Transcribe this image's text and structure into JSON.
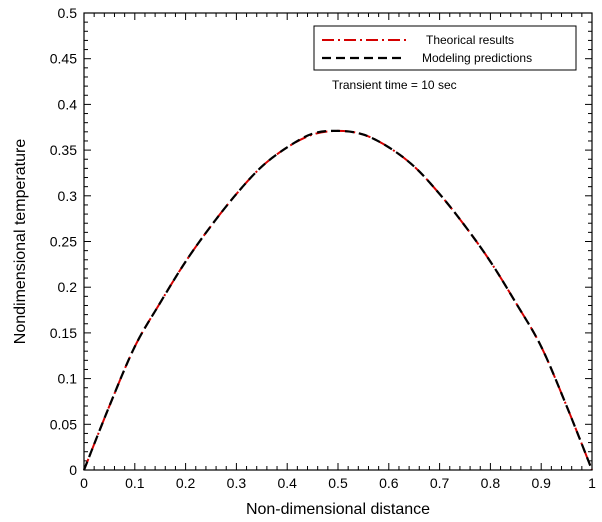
{
  "chart_data": {
    "type": "line",
    "title": "",
    "xlabel": "Non-dimensional distance",
    "ylabel": "Nondimensional temperature",
    "xlim": [
      0,
      1
    ],
    "ylim": [
      0,
      0.5
    ],
    "xticks": [
      0,
      0.1,
      0.2,
      0.3,
      0.4,
      0.5,
      0.6,
      0.7,
      0.8,
      0.9,
      1
    ],
    "xtick_labels": [
      "0",
      "0.1",
      "0.2",
      "0.3",
      "0.4",
      "0.5",
      "0.6",
      "0.7",
      "0.8",
      "0.9",
      "1"
    ],
    "yticks": [
      0,
      0.05,
      0.1,
      0.15,
      0.2,
      0.25,
      0.3,
      0.35,
      0.4,
      0.45,
      0.5
    ],
    "ytick_labels": [
      "0",
      "0.05",
      "0.1",
      "0.15",
      "0.2",
      "0.25",
      "0.3",
      "0.35",
      "0.4",
      "0.45",
      "0.5"
    ],
    "grid": false,
    "legend_position": "top-right",
    "annotation": "Transient time = 10 sec",
    "series": [
      {
        "name": "Theorical results",
        "color": "#d40000",
        "style": "dash-dot",
        "x": [
          0,
          0.05,
          0.1,
          0.15,
          0.2,
          0.25,
          0.3,
          0.35,
          0.4,
          0.45,
          0.5,
          0.55,
          0.6,
          0.65,
          0.7,
          0.75,
          0.8,
          0.85,
          0.9,
          0.95,
          1
        ],
        "y": [
          0,
          0.07,
          0.135,
          0.183,
          0.228,
          0.267,
          0.302,
          0.332,
          0.353,
          0.367,
          0.371,
          0.367,
          0.353,
          0.332,
          0.302,
          0.267,
          0.228,
          0.183,
          0.135,
          0.07,
          0
        ]
      },
      {
        "name": "Modeling predictions",
        "color": "#000000",
        "style": "dashed",
        "x": [
          0,
          0.05,
          0.1,
          0.15,
          0.2,
          0.25,
          0.3,
          0.35,
          0.4,
          0.45,
          0.5,
          0.55,
          0.6,
          0.65,
          0.7,
          0.75,
          0.8,
          0.85,
          0.9,
          0.95,
          1
        ],
        "y": [
          0,
          0.07,
          0.135,
          0.183,
          0.228,
          0.267,
          0.302,
          0.332,
          0.353,
          0.368,
          0.371,
          0.367,
          0.353,
          0.332,
          0.302,
          0.267,
          0.228,
          0.183,
          0.135,
          0.07,
          0
        ]
      }
    ]
  }
}
